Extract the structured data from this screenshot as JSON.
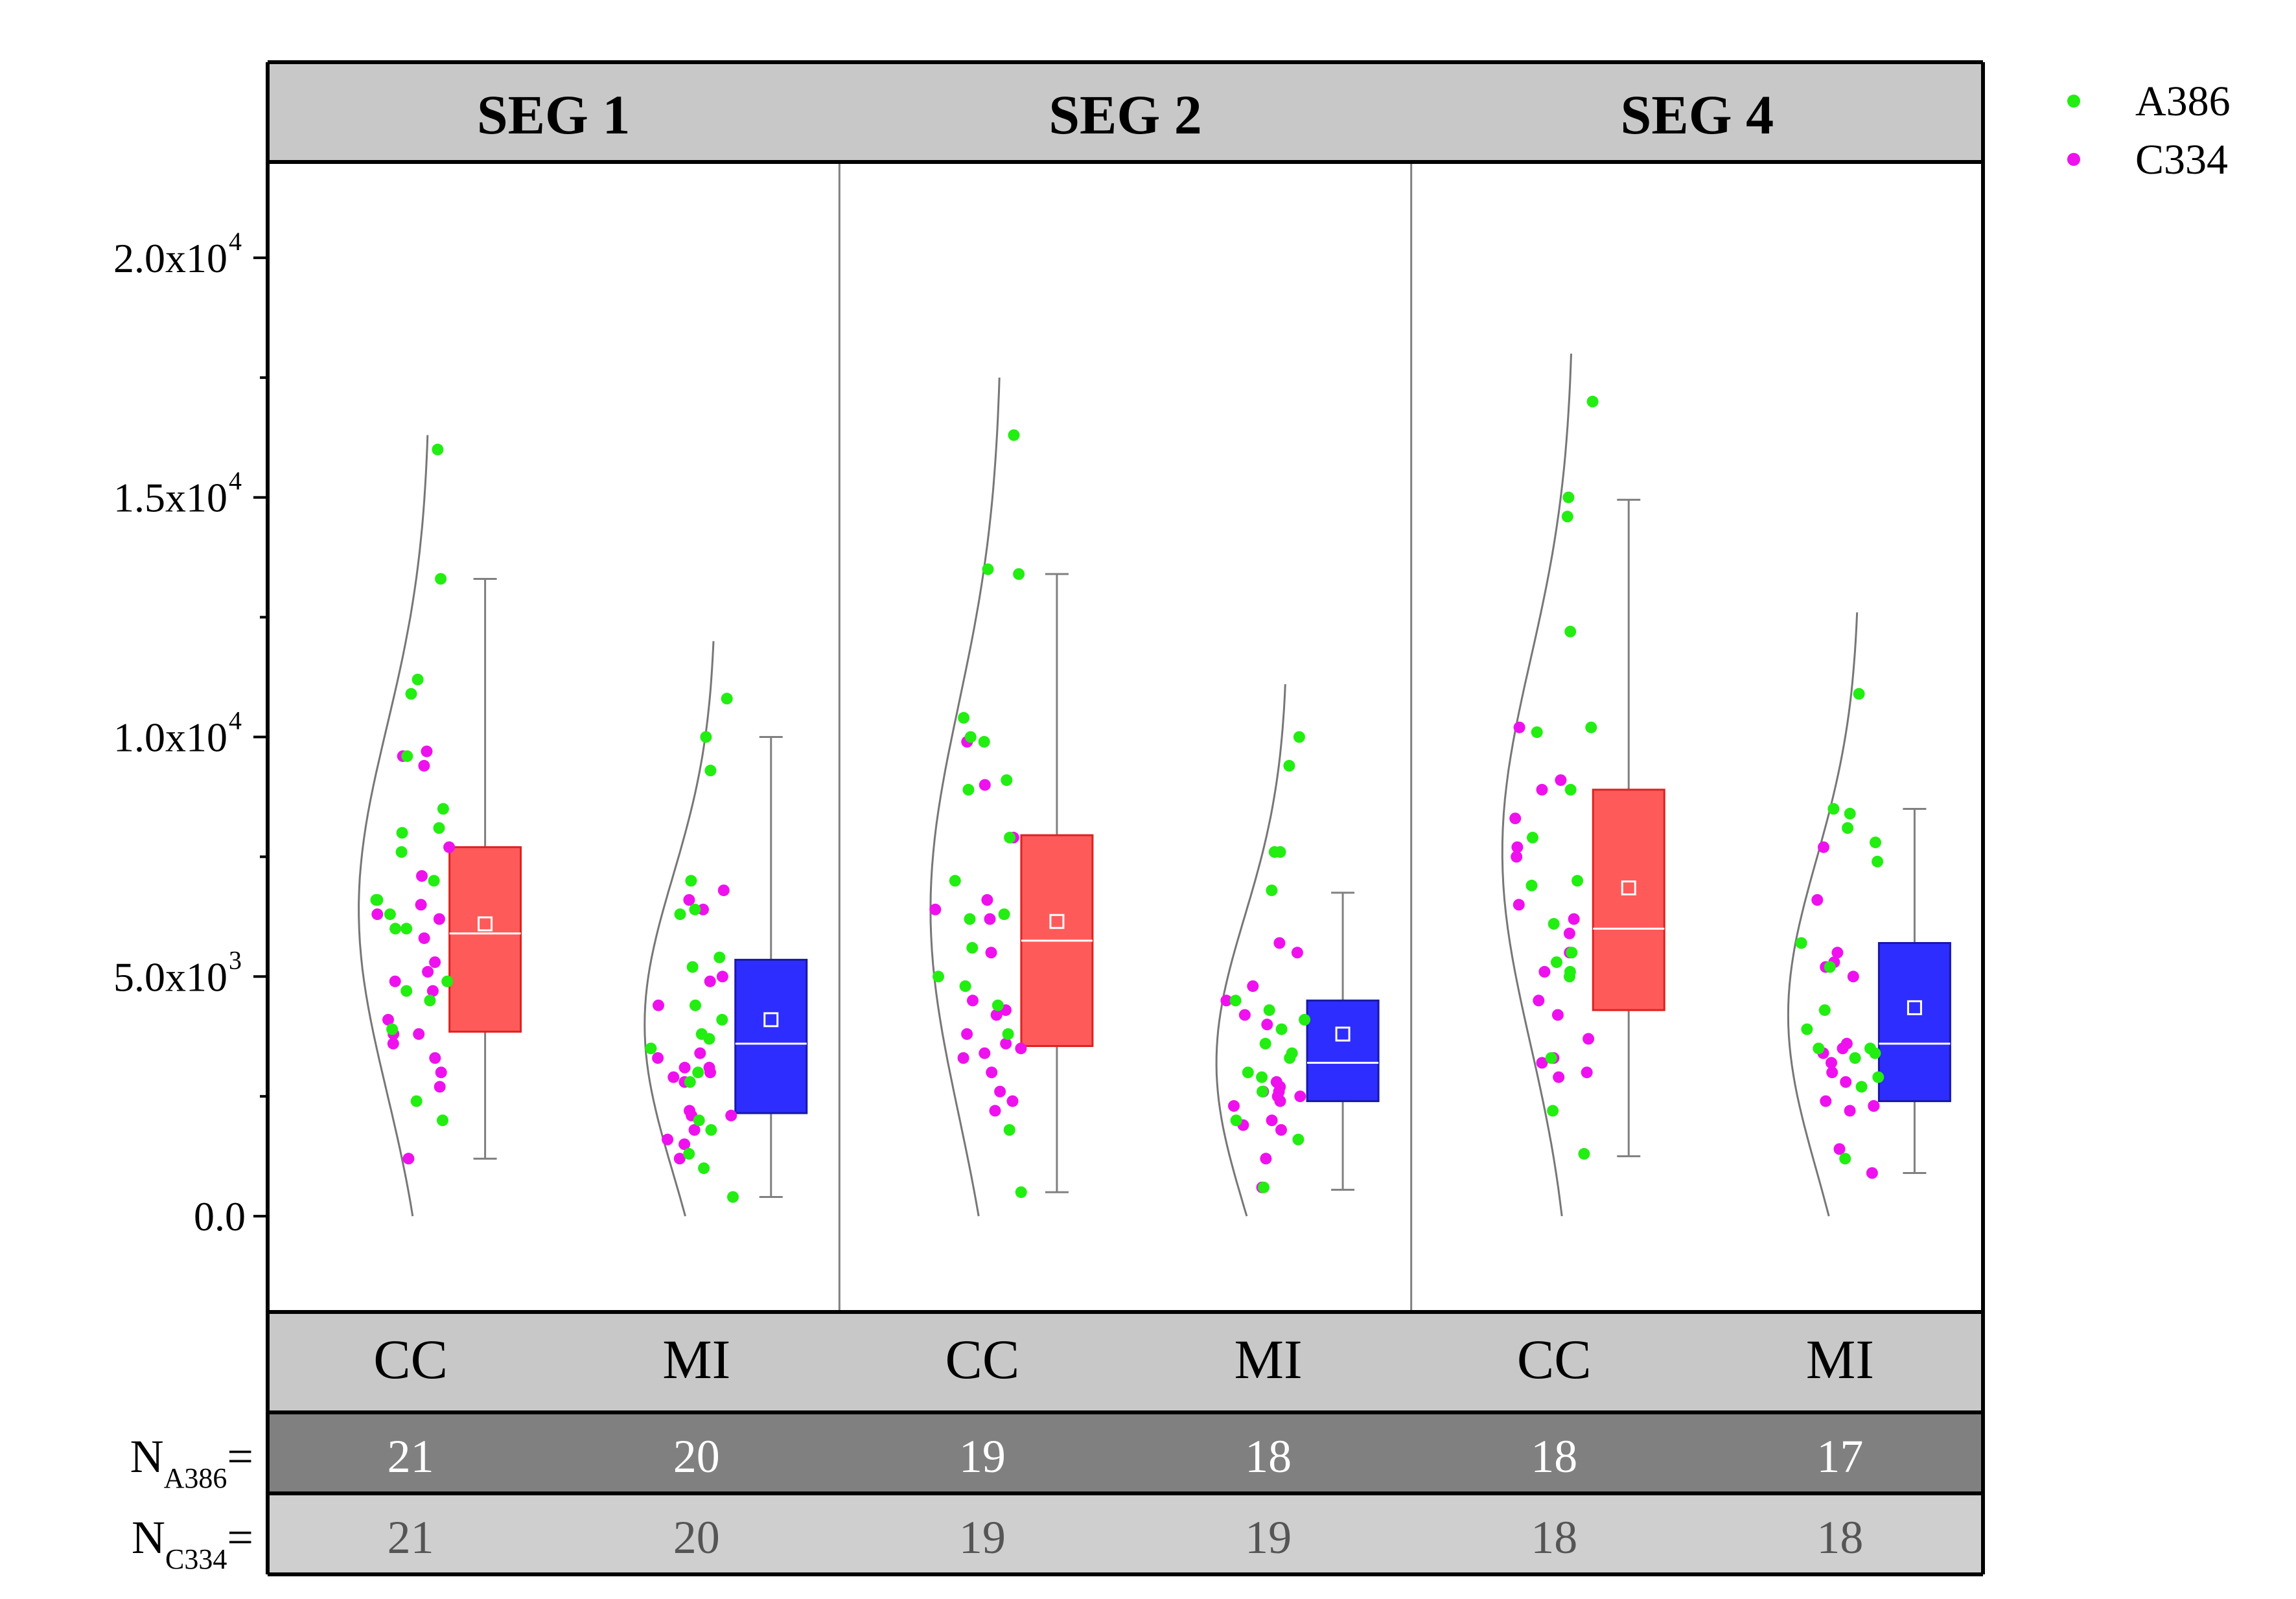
{
  "chart_data": {
    "type": "box",
    "ylim": [
      -2000,
      22000
    ],
    "y_ticks": [
      {
        "value": 0,
        "label": "0.0",
        "exp": ""
      },
      {
        "value": 5000,
        "label": "5.0x10",
        "exp": "3"
      },
      {
        "value": 10000,
        "label": "1.0x10",
        "exp": "4"
      },
      {
        "value": 15000,
        "label": "1.5x10",
        "exp": "4"
      },
      {
        "value": 20000,
        "label": "2.0x10",
        "exp": "4"
      }
    ],
    "legend": {
      "position": "top-right",
      "items": [
        {
          "name": "A386",
          "color": "#22ee11"
        },
        {
          "name": "C334",
          "color": "#ee11ee"
        }
      ]
    },
    "count_rows": [
      {
        "label": "N",
        "sub": "A386",
        "suffix": "="
      },
      {
        "label": "N",
        "sub": "C334",
        "suffix": "="
      }
    ],
    "colors": {
      "CC": "#ff5a5a",
      "CC_edge": "#dd2222",
      "MI": "#2d2dff",
      "MI_edge": "#1818aa",
      "header": "#c8c8c8",
      "row_dark": "#808080",
      "row_light": "#cfcfcf",
      "whisker": "#808080"
    },
    "panels": [
      {
        "title": "SEG 1",
        "groups": [
          {
            "name": "CC",
            "box": {
              "whisker_low": 1200,
              "q1": 3850,
              "median": 5900,
              "mean": 6100,
              "q3": 7700,
              "whisker_high": 13300
            },
            "n_A386": "21",
            "n_C334": "21",
            "curve": {
              "peak_y": 6400,
              "max_y": 16300
            },
            "points_A386": [
              16000,
              13300,
              11200,
              10900,
              9600,
              8500,
              8100,
              8000,
              7600,
              7000,
              6600,
              6600,
              6300,
              6000,
              6000,
              4900,
              4700,
              4500,
              3900,
              2400,
              2000
            ],
            "points_C334": [
              9700,
              9600,
              9400,
              7700,
              7100,
              6500,
              6300,
              6200,
              5800,
              5300,
              5100,
              4900,
              4700,
              4100,
              3800,
              3800,
              3600,
              3300,
              3000,
              2700,
              1200
            ]
          },
          {
            "name": "MI",
            "box": {
              "whisker_low": 400,
              "q1": 2150,
              "median": 3600,
              "mean": 4100,
              "q3": 5350,
              "whisker_high": 10000
            },
            "n_A386": "20",
            "n_C334": "20",
            "curve": {
              "peak_y": 4000,
              "max_y": 12000
            },
            "points_A386": [
              10800,
              10000,
              9300,
              7000,
              6400,
              6300,
              5400,
              5200,
              4400,
              4100,
              3800,
              3700,
              3500,
              3000,
              2800,
              2000,
              1800,
              1300,
              1000,
              400
            ],
            "points_C334": [
              6800,
              6600,
              6400,
              5000,
              4900,
              4400,
              3400,
              3300,
              3100,
              3100,
              3000,
              2900,
              2800,
              2200,
              2100,
              2100,
              1800,
              1600,
              1500,
              1200
            ]
          }
        ]
      },
      {
        "title": "SEG 2",
        "groups": [
          {
            "name": "CC",
            "box": {
              "whisker_low": 500,
              "q1": 3550,
              "median": 5750,
              "mean": 6150,
              "q3": 7950,
              "whisker_high": 13400
            },
            "n_A386": "19",
            "n_C334": "19",
            "curve": {
              "peak_y": 6400,
              "max_y": 17500
            },
            "points_A386": [
              16300,
              13500,
              13400,
              10400,
              10000,
              9900,
              9100,
              8900,
              7900,
              7000,
              6300,
              6200,
              5600,
              5000,
              4800,
              4400,
              3800,
              1800,
              500
            ],
            "points_C334": [
              9900,
              9000,
              7900,
              6600,
              6400,
              6200,
              5500,
              4500,
              4300,
              4200,
              3800,
              3600,
              3500,
              3400,
              3300,
              3000,
              2600,
              2400,
              2200
            ]
          },
          {
            "name": "MI",
            "box": {
              "whisker_low": 550,
              "q1": 2400,
              "median": 3200,
              "mean": 3800,
              "q3": 4500,
              "whisker_high": 6750
            },
            "n_A386": "18",
            "n_C334": "19",
            "curve": {
              "peak_y": 3200,
              "max_y": 11100
            },
            "points_A386": [
              10000,
              9400,
              7600,
              7600,
              6800,
              4500,
              4300,
              4100,
              3900,
              3600,
              3400,
              3300,
              3000,
              2900,
              2600,
              2000,
              1600,
              600
            ],
            "points_C334": [
              5700,
              5500,
              4800,
              4500,
              4200,
              4000,
              2800,
              2700,
              2600,
              2600,
              2500,
              2500,
              2400,
              2300,
              2000,
              1900,
              1800,
              1200,
              600
            ]
          }
        ]
      },
      {
        "title": "SEG 4",
        "groups": [
          {
            "name": "CC",
            "box": {
              "whisker_low": 1250,
              "q1": 4300,
              "median": 6000,
              "mean": 6850,
              "q3": 8900,
              "whisker_high": 14950
            },
            "n_A386": "18",
            "n_C334": "18",
            "curve": {
              "peak_y": 7600,
              "max_y": 18000
            },
            "points_A386": [
              17000,
              15000,
              14600,
              12200,
              10200,
              10100,
              8900,
              7900,
              7000,
              6900,
              6100,
              5500,
              5300,
              5100,
              5000,
              3300,
              2200,
              1300
            ],
            "points_C334": [
              10200,
              9100,
              8900,
              8300,
              7700,
              7500,
              6500,
              6200,
              5900,
              5500,
              5100,
              4500,
              4200,
              3700,
              3300,
              3200,
              3000,
              2900
            ]
          },
          {
            "name": "MI",
            "box": {
              "whisker_low": 900,
              "q1": 2400,
              "median": 3600,
              "mean": 4350,
              "q3": 5700,
              "whisker_high": 8500
            },
            "n_A386": "17",
            "n_C334": "18",
            "curve": {
              "peak_y": 4200,
              "max_y": 12600
            },
            "points_A386": [
              10900,
              8500,
              8400,
              8100,
              7800,
              7400,
              5700,
              5200,
              4300,
              3900,
              3500,
              3500,
              3400,
              3300,
              2900,
              2700,
              1200
            ],
            "points_C334": [
              7700,
              6600,
              5500,
              5300,
              5200,
              5000,
              3600,
              3500,
              3400,
              3200,
              3000,
              2800,
              2400,
              2300,
              2300,
              2200,
              1400,
              900
            ]
          }
        ]
      }
    ]
  }
}
